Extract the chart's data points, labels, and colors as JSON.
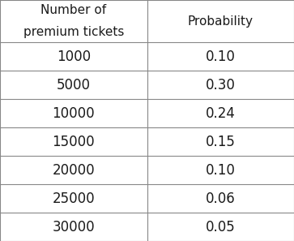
{
  "col1_header_line1": "Number of",
  "col1_header_line2": "premium tickets",
  "col2_header": "Probability",
  "rows": [
    [
      "1000",
      "0.10"
    ],
    [
      "5000",
      "0.30"
    ],
    [
      "10000",
      "0.24"
    ],
    [
      "15000",
      "0.15"
    ],
    [
      "20000",
      "0.10"
    ],
    [
      "25000",
      "0.06"
    ],
    [
      "30000",
      "0.05"
    ]
  ],
  "background_color": "#ffffff",
  "text_color": "#1a1a1a",
  "line_color": "#888888",
  "header_fontsize": 11.0,
  "data_fontsize": 12.0,
  "col_split": 0.5
}
